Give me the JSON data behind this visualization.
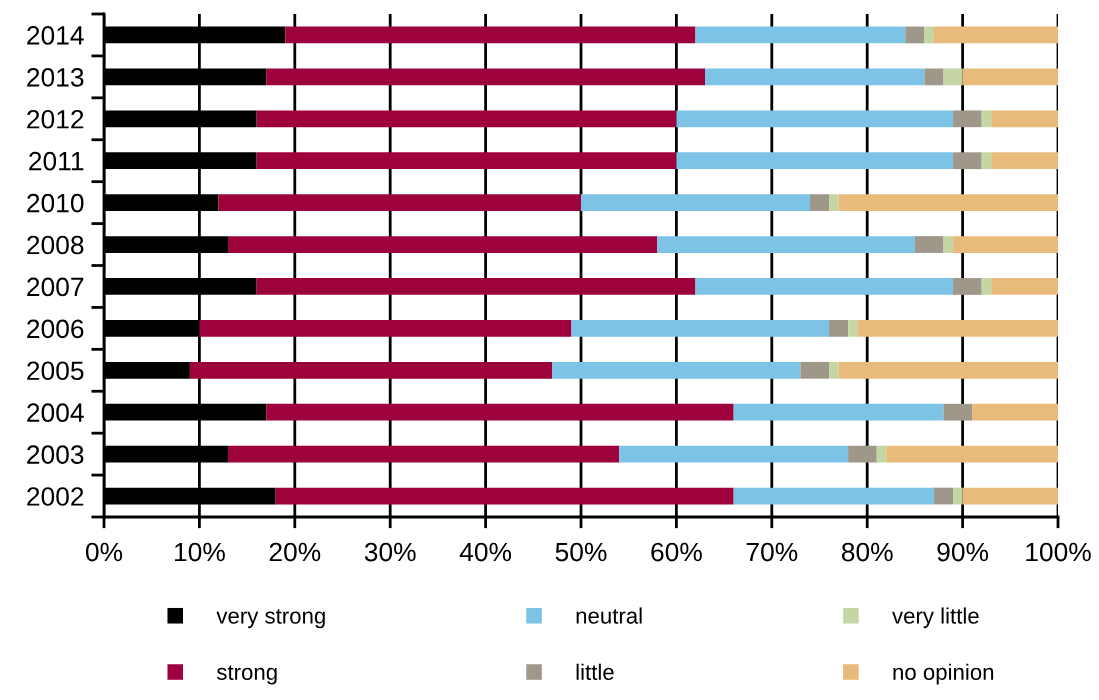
{
  "chart_data": {
    "type": "bar",
    "orientation": "horizontal",
    "stacked": true,
    "categories": [
      "2014",
      "2013",
      "2012",
      "2011",
      "2010",
      "2008",
      "2007",
      "2006",
      "2005",
      "2004",
      "2003",
      "2002"
    ],
    "series": [
      {
        "name": "very strong",
        "color": "#000000",
        "values": [
          19,
          17,
          16,
          16,
          12,
          13,
          16,
          10,
          9,
          17,
          13,
          18
        ]
      },
      {
        "name": "strong",
        "color": "#9e023c",
        "values": [
          43,
          46,
          44,
          44,
          38,
          45,
          46,
          39,
          38,
          49,
          41,
          48
        ]
      },
      {
        "name": "neutral",
        "color": "#7dc3e6",
        "values": [
          22,
          23,
          29,
          29,
          24,
          27,
          27,
          27,
          26,
          22,
          24,
          21
        ]
      },
      {
        "name": "little",
        "color": "#9e978a",
        "values": [
          2,
          2,
          3,
          3,
          2,
          3,
          3,
          2,
          3,
          3,
          3,
          2
        ]
      },
      {
        "name": "very little",
        "color": "#c5d6a5",
        "values": [
          1,
          2,
          1,
          1,
          1,
          1,
          1,
          1,
          1,
          0,
          1,
          1
        ]
      },
      {
        "name": "no opinion",
        "color": "#e9bb7a",
        "values": [
          13,
          10,
          7,
          7,
          23,
          11,
          7,
          21,
          23,
          9,
          18,
          10
        ]
      }
    ],
    "xlim": [
      0,
      100
    ],
    "xticks": [
      {
        "value": 0,
        "label": "0%"
      },
      {
        "value": 10,
        "label": "10%"
      },
      {
        "value": 20,
        "label": "20%"
      },
      {
        "value": 30,
        "label": "30%"
      },
      {
        "value": 40,
        "label": "40%"
      },
      {
        "value": 50,
        "label": "50%"
      },
      {
        "value": 60,
        "label": "60%"
      },
      {
        "value": 70,
        "label": "70%"
      },
      {
        "value": 80,
        "label": "80%"
      },
      {
        "value": 90,
        "label": "90%"
      },
      {
        "value": 100,
        "label": "100%"
      }
    ],
    "grid": "x",
    "legend": "bottom"
  }
}
